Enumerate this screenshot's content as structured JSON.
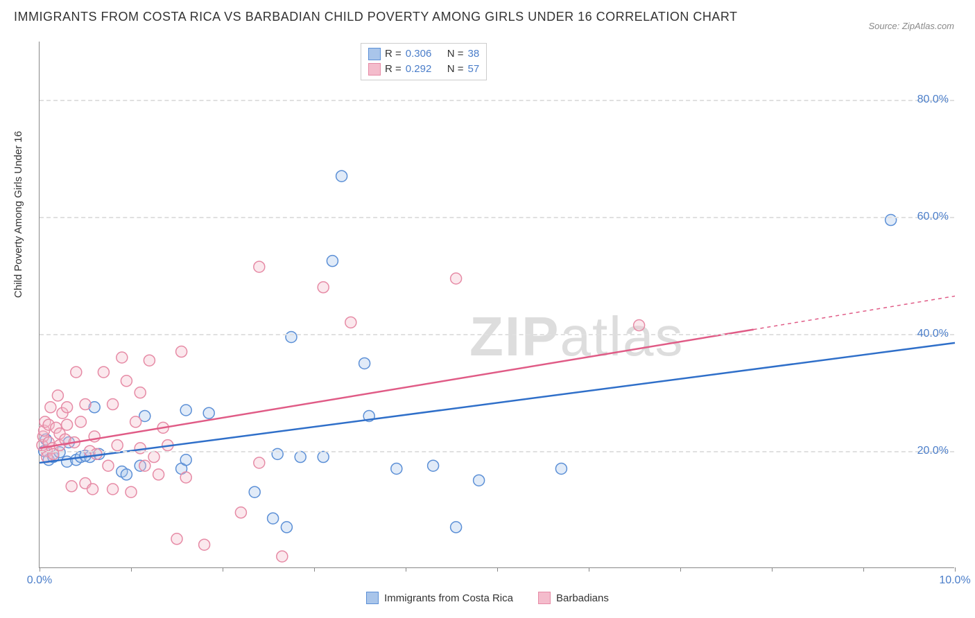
{
  "title": "IMMIGRANTS FROM COSTA RICA VS BARBADIAN CHILD POVERTY AMONG GIRLS UNDER 16 CORRELATION CHART",
  "source": "Source: ZipAtlas.com",
  "y_axis_label": "Child Poverty Among Girls Under 16",
  "watermark_a": "ZIP",
  "watermark_b": "atlas",
  "chart": {
    "type": "scatter",
    "xlim": [
      0,
      10
    ],
    "ylim": [
      0,
      90
    ],
    "x_ticks": [
      0,
      1,
      2,
      3,
      4,
      5,
      6,
      7,
      8,
      9,
      10
    ],
    "x_tick_labels": {
      "0": "0.0%",
      "10": "10.0%"
    },
    "y_gridlines": [
      20,
      40,
      60,
      80
    ],
    "y_tick_labels": [
      "20.0%",
      "40.0%",
      "60.0%",
      "80.0%"
    ],
    "background_color": "#ffffff",
    "grid_color": "#e0e0e0",
    "axis_color": "#888888",
    "tick_label_color": "#4a7dc9",
    "marker_radius": 8,
    "marker_stroke_width": 1.5,
    "marker_fill_opacity": 0.35,
    "regression_line_width": 2.5,
    "series": [
      {
        "name": "Immigrants from Costa Rica",
        "color_stroke": "#5b8fd6",
        "color_fill": "#a9c5ea",
        "line_color": "#2f6fc9",
        "R": "0.306",
        "N": "38",
        "regression": {
          "x1": 0,
          "y1": 18.0,
          "x2": 10,
          "y2": 38.5,
          "solid_to_x": 10
        },
        "points": [
          [
            0.05,
            20.0
          ],
          [
            0.07,
            22.0
          ],
          [
            0.1,
            18.5
          ],
          [
            0.15,
            19.0
          ],
          [
            0.22,
            19.8
          ],
          [
            0.3,
            18.2
          ],
          [
            0.32,
            21.5
          ],
          [
            0.4,
            18.5
          ],
          [
            0.45,
            19.0
          ],
          [
            0.55,
            19.0
          ],
          [
            0.6,
            27.5
          ],
          [
            0.65,
            19.5
          ],
          [
            0.9,
            16.5
          ],
          [
            0.95,
            16.0
          ],
          [
            1.1,
            17.5
          ],
          [
            1.15,
            26.0
          ],
          [
            1.55,
            17.0
          ],
          [
            1.6,
            27.0
          ],
          [
            1.6,
            18.5
          ],
          [
            1.85,
            26.5
          ],
          [
            2.35,
            13.0
          ],
          [
            2.55,
            8.5
          ],
          [
            2.6,
            19.5
          ],
          [
            2.7,
            7.0
          ],
          [
            2.75,
            39.5
          ],
          [
            2.85,
            19.0
          ],
          [
            3.1,
            19.0
          ],
          [
            3.2,
            52.5
          ],
          [
            3.3,
            67.0
          ],
          [
            3.55,
            35.0
          ],
          [
            3.6,
            26.0
          ],
          [
            3.9,
            17.0
          ],
          [
            4.3,
            17.5
          ],
          [
            4.55,
            7.0
          ],
          [
            4.8,
            15.0
          ],
          [
            5.7,
            17.0
          ],
          [
            9.3,
            59.5
          ],
          [
            0.5,
            19.2
          ]
        ]
      },
      {
        "name": "Barbadians",
        "color_stroke": "#e68aa5",
        "color_fill": "#f4bccc",
        "line_color": "#e05b86",
        "R": "0.292",
        "N": "57",
        "regression": {
          "x1": 0,
          "y1": 20.5,
          "x2": 10,
          "y2": 46.5,
          "solid_to_x": 7.8
        },
        "points": [
          [
            0.03,
            21.0
          ],
          [
            0.04,
            22.5
          ],
          [
            0.05,
            23.5
          ],
          [
            0.06,
            25.0
          ],
          [
            0.08,
            20.0
          ],
          [
            0.08,
            19.0
          ],
          [
            0.1,
            21.5
          ],
          [
            0.1,
            24.5
          ],
          [
            0.12,
            27.5
          ],
          [
            0.14,
            20.5
          ],
          [
            0.15,
            19.5
          ],
          [
            0.18,
            24.0
          ],
          [
            0.2,
            29.5
          ],
          [
            0.22,
            23.0
          ],
          [
            0.22,
            21.0
          ],
          [
            0.25,
            26.5
          ],
          [
            0.28,
            22.0
          ],
          [
            0.3,
            27.5
          ],
          [
            0.3,
            24.5
          ],
          [
            0.35,
            14.0
          ],
          [
            0.38,
            21.5
          ],
          [
            0.4,
            33.5
          ],
          [
            0.45,
            25.0
          ],
          [
            0.5,
            28.0
          ],
          [
            0.5,
            14.5
          ],
          [
            0.55,
            20.0
          ],
          [
            0.58,
            13.5
          ],
          [
            0.6,
            22.5
          ],
          [
            0.62,
            19.5
          ],
          [
            0.7,
            33.5
          ],
          [
            0.75,
            17.5
          ],
          [
            0.8,
            28.0
          ],
          [
            0.8,
            13.5
          ],
          [
            0.85,
            21.0
          ],
          [
            0.9,
            36.0
          ],
          [
            0.95,
            32.0
          ],
          [
            1.0,
            13.0
          ],
          [
            1.05,
            25.0
          ],
          [
            1.1,
            30.0
          ],
          [
            1.1,
            20.5
          ],
          [
            1.15,
            17.5
          ],
          [
            1.2,
            35.5
          ],
          [
            1.25,
            19.0
          ],
          [
            1.3,
            16.0
          ],
          [
            1.35,
            24.0
          ],
          [
            1.4,
            21.0
          ],
          [
            1.5,
            5.0
          ],
          [
            1.55,
            37.0
          ],
          [
            1.6,
            15.5
          ],
          [
            1.8,
            4.0
          ],
          [
            2.2,
            9.5
          ],
          [
            2.4,
            51.5
          ],
          [
            2.4,
            18.0
          ],
          [
            2.65,
            2.0
          ],
          [
            3.1,
            48.0
          ],
          [
            3.4,
            42.0
          ],
          [
            4.55,
            49.5
          ],
          [
            6.55,
            41.5
          ]
        ]
      }
    ]
  },
  "legend_top": {
    "r_label": "R =",
    "n_label": "N =",
    "value_color": "#4a7dc9",
    "label_color": "#333333"
  },
  "legend_bottom": {
    "items": [
      "Immigrants from Costa Rica",
      "Barbadians"
    ]
  }
}
